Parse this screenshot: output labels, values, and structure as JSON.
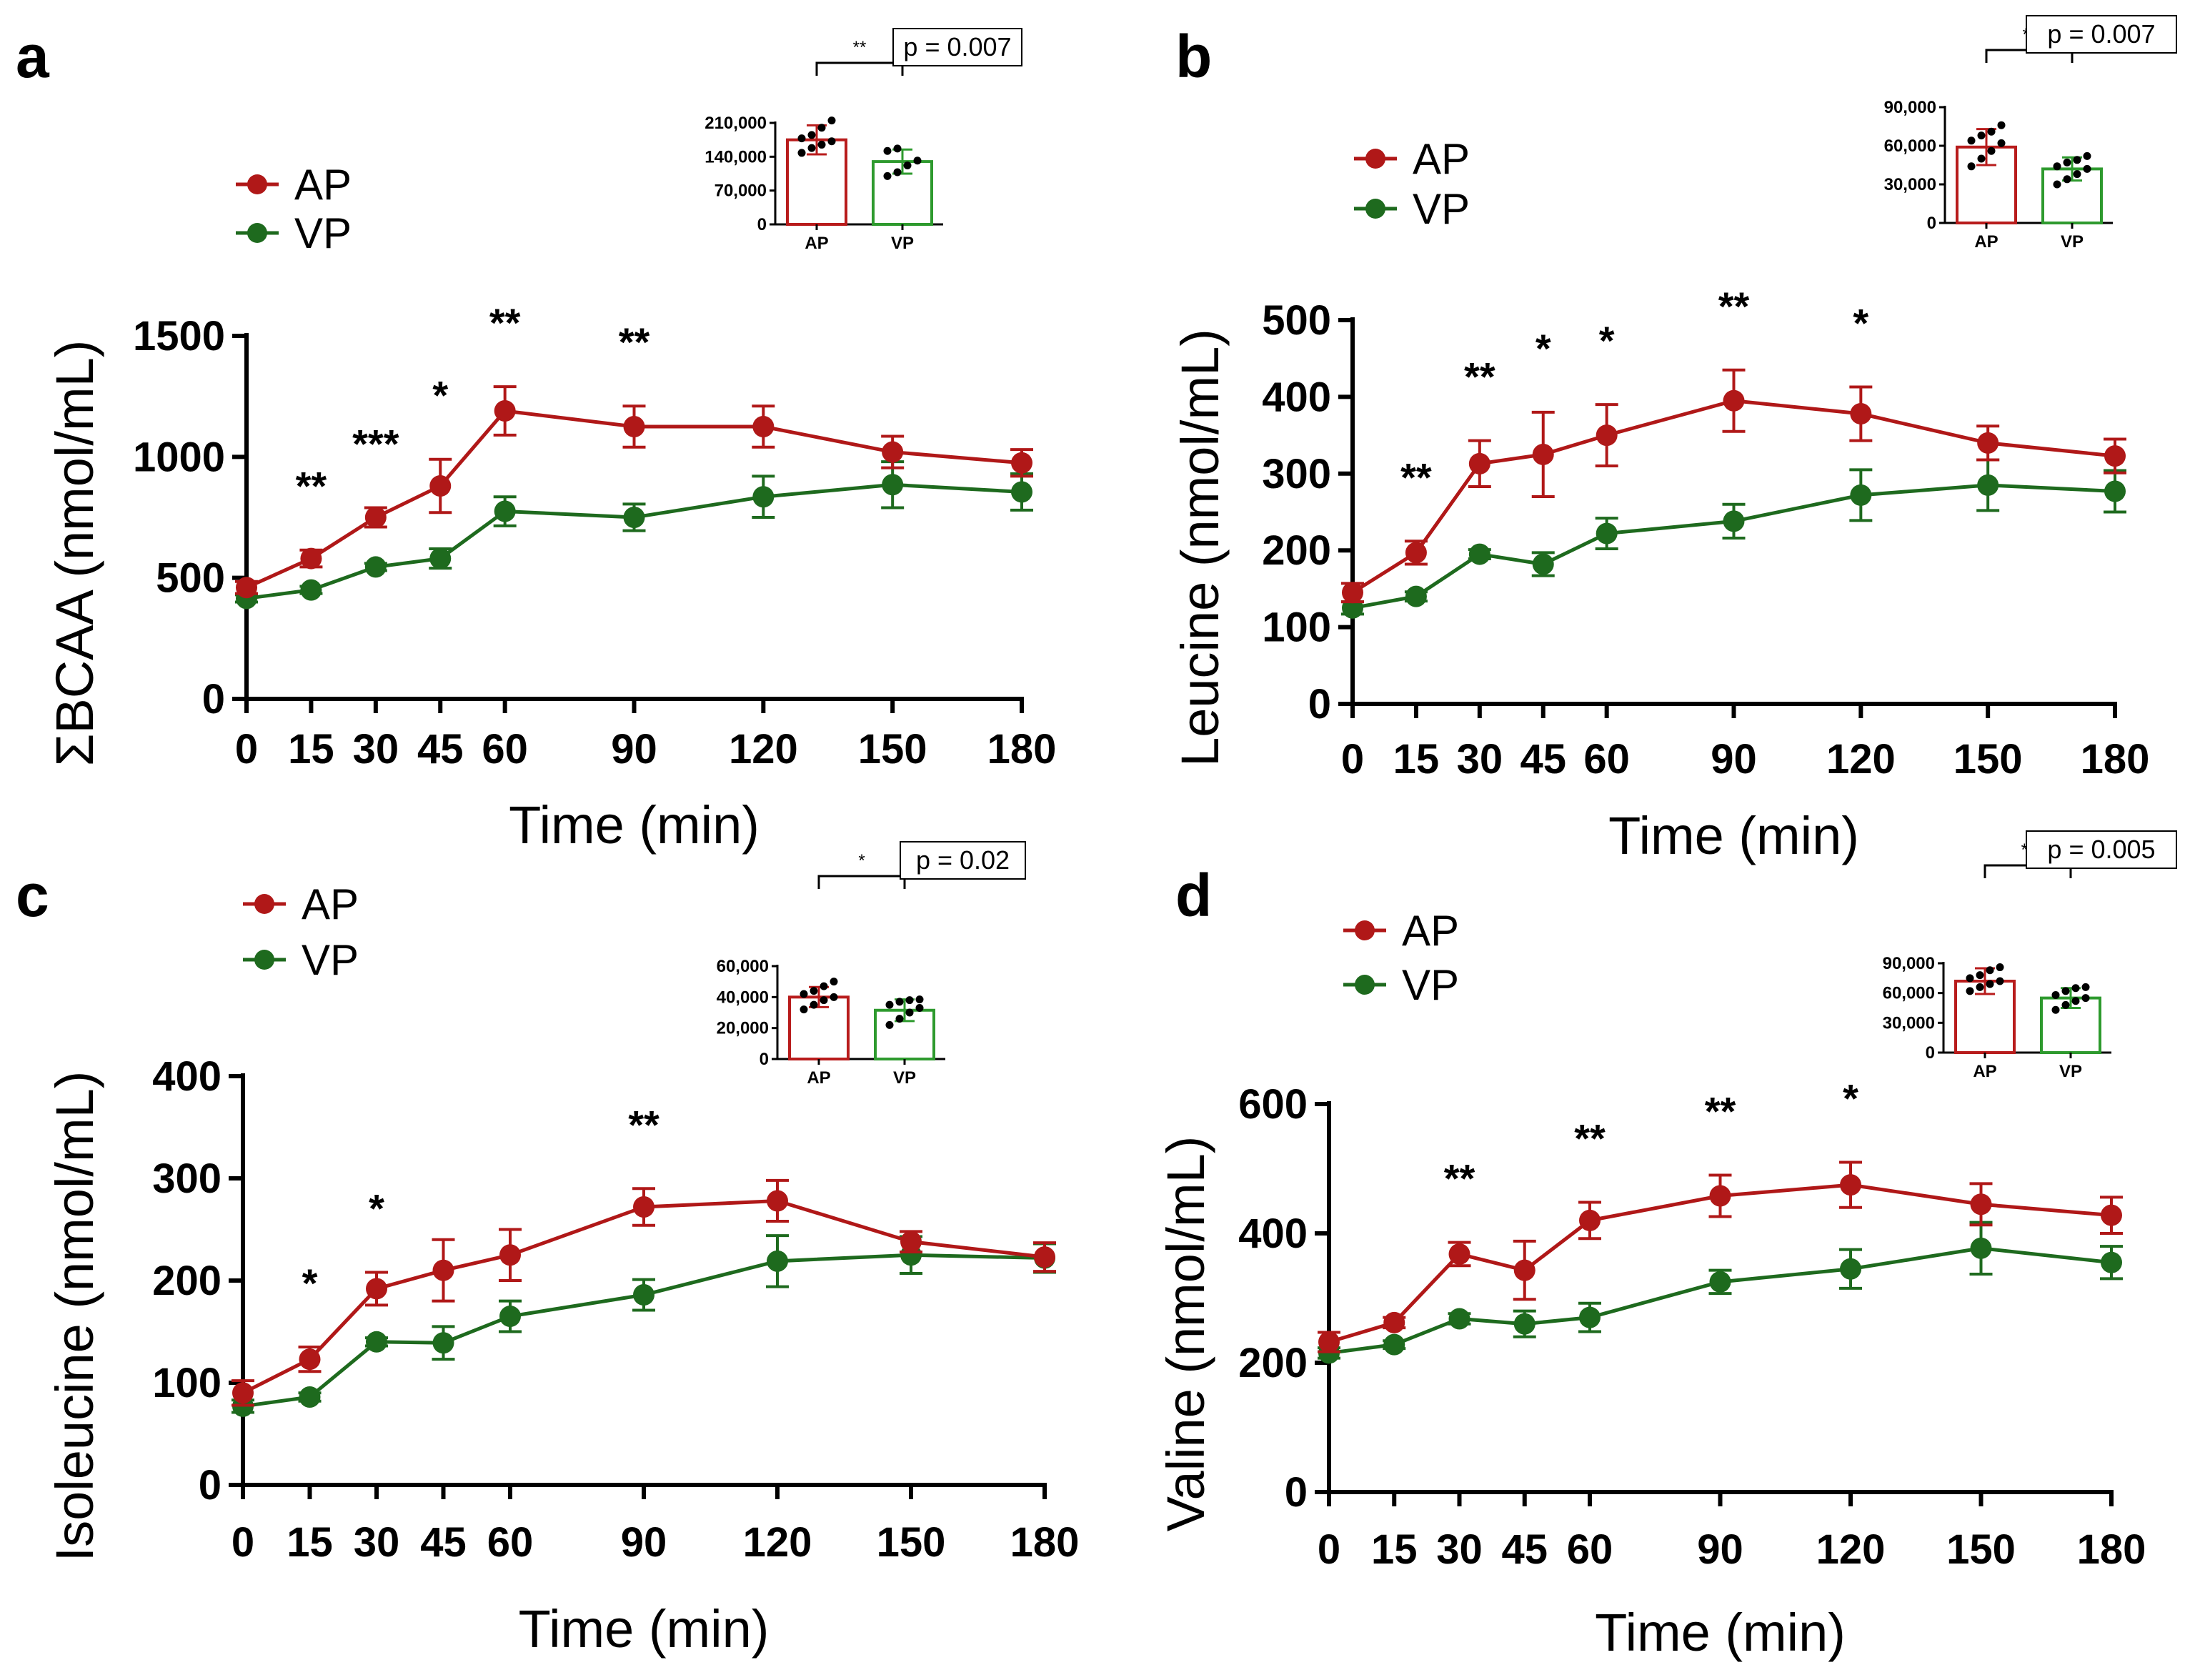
{
  "colors": {
    "AP": "#b01818",
    "VP": "#1e6a1e",
    "inset_AP": "#b81c1c",
    "inset_VP": "#2e9a2e",
    "axis": "#000000"
  },
  "chart_data": [
    {
      "panel": "a",
      "type": "line",
      "title": "",
      "xlabel": "Time (min)",
      "ylabel": "ΣBCAA (nmol/mL)",
      "x": [
        0,
        15,
        30,
        45,
        60,
        90,
        120,
        150,
        180
      ],
      "xtick_labels": [
        "0",
        "15",
        "30",
        "45",
        "60",
        "90",
        "120",
        "150",
        "180"
      ],
      "ylim": [
        0,
        1500
      ],
      "yticks": [
        0,
        500,
        1000,
        1500
      ],
      "ytick_labels": [
        "0",
        "500",
        "1000",
        "1500"
      ],
      "legend": "top-left",
      "series": [
        {
          "name": "AP",
          "values": [
            460,
            580,
            750,
            880,
            1190,
            1125,
            1125,
            1020,
            975
          ],
          "errors": [
            25,
            35,
            40,
            110,
            100,
            85,
            85,
            65,
            55
          ]
        },
        {
          "name": "VP",
          "values": [
            415,
            450,
            545,
            580,
            775,
            750,
            835,
            885,
            855
          ],
          "errors": [
            15,
            15,
            15,
            40,
            60,
            55,
            85,
            95,
            75
          ]
        }
      ],
      "annotations": [
        {
          "x": 15,
          "text": "**"
        },
        {
          "x": 30,
          "text": "***"
        },
        {
          "x": 45,
          "text": "*"
        },
        {
          "x": 60,
          "text": "**"
        },
        {
          "x": 90,
          "text": "**"
        }
      ],
      "inset": {
        "type": "bar",
        "categories": [
          "AP",
          "VP"
        ],
        "values": [
          175000,
          130000
        ],
        "errors": [
          30000,
          25000
        ],
        "ylim": [
          0,
          210000
        ],
        "yticks": [
          0,
          70000,
          140000,
          210000
        ],
        "ytick_labels": [
          "0",
          "70,000",
          "140,000",
          "210,000"
        ],
        "points": [
          [
            148000,
            158000,
            165000,
            172000,
            178000,
            185000,
            200000,
            215000
          ],
          [
            100000,
            108000,
            122000,
            132000,
            152000,
            157000
          ]
        ],
        "significance": "**",
        "p_label": "p = 0.007"
      }
    },
    {
      "panel": "b",
      "type": "line",
      "title": "",
      "xlabel": "Time (min)",
      "ylabel": "Leucine (nmol/mL)",
      "x": [
        0,
        15,
        30,
        45,
        60,
        90,
        120,
        150,
        180
      ],
      "xtick_labels": [
        "0",
        "15",
        "30",
        "45",
        "60",
        "90",
        "120",
        "150",
        "180"
      ],
      "ylim": [
        0,
        500
      ],
      "yticks": [
        0,
        100,
        200,
        300,
        400,
        500
      ],
      "ytick_labels": [
        "0",
        "100",
        "200",
        "300",
        "400",
        "500"
      ],
      "legend": "top-left",
      "series": [
        {
          "name": "AP",
          "values": [
            145,
            197,
            313,
            325,
            350,
            395,
            378,
            340,
            323
          ],
          "errors": [
            12,
            15,
            30,
            55,
            40,
            40,
            35,
            22,
            22
          ]
        },
        {
          "name": "VP",
          "values": [
            125,
            140,
            195,
            182,
            222,
            238,
            272,
            285,
            277
          ],
          "errors": [
            8,
            6,
            6,
            15,
            20,
            22,
            33,
            33,
            27
          ]
        }
      ],
      "annotations": [
        {
          "x": 15,
          "text": "**"
        },
        {
          "x": 30,
          "text": "**"
        },
        {
          "x": 45,
          "text": "*"
        },
        {
          "x": 60,
          "text": "*"
        },
        {
          "x": 90,
          "text": "**"
        },
        {
          "x": 120,
          "text": "*"
        }
      ],
      "inset": {
        "type": "bar",
        "categories": [
          "AP",
          "VP"
        ],
        "values": [
          59000,
          42000
        ],
        "errors": [
          14000,
          9000
        ],
        "ylim": [
          0,
          90000
        ],
        "yticks": [
          0,
          30000,
          60000,
          90000
        ],
        "ytick_labels": [
          "0",
          "30,000",
          "60,000",
          "90,000"
        ],
        "points": [
          [
            44000,
            50000,
            56000,
            62000,
            64000,
            68000,
            71000,
            76000
          ],
          [
            30000,
            34000,
            38000,
            42000,
            44000,
            47000,
            49000,
            52000
          ]
        ],
        "significance": "**",
        "p_label": "p = 0.007"
      }
    },
    {
      "panel": "c",
      "type": "line",
      "title": "",
      "xlabel": "Time (min)",
      "ylabel": "Isoleucine (nmol/mL)",
      "x": [
        0,
        15,
        30,
        45,
        60,
        90,
        120,
        150,
        180
      ],
      "xtick_labels": [
        "0",
        "15",
        "30",
        "45",
        "60",
        "90",
        "120",
        "150",
        "180"
      ],
      "ylim": [
        0,
        400
      ],
      "yticks": [
        0,
        100,
        200,
        300,
        400
      ],
      "ytick_labels": [
        "0",
        "100",
        "200",
        "300",
        "400"
      ],
      "legend": "top-left",
      "series": [
        {
          "name": "AP",
          "values": [
            90,
            123,
            192,
            210,
            225,
            272,
            278,
            238,
            223
          ],
          "errors": [
            12,
            12,
            16,
            30,
            25,
            18,
            20,
            10,
            14
          ]
        },
        {
          "name": "VP",
          "values": [
            77,
            86,
            140,
            139,
            165,
            186,
            219,
            225,
            222
          ],
          "errors": [
            6,
            4,
            4,
            16,
            15,
            15,
            25,
            18,
            14
          ]
        }
      ],
      "annotations": [
        {
          "x": 15,
          "text": "*"
        },
        {
          "x": 30,
          "text": "*"
        },
        {
          "x": 90,
          "text": "**"
        }
      ],
      "inset": {
        "type": "bar",
        "categories": [
          "AP",
          "VP"
        ],
        "values": [
          40000,
          31500
        ],
        "errors": [
          6500,
          7000
        ],
        "ylim": [
          0,
          60000
        ],
        "yticks": [
          0,
          20000,
          40000,
          60000
        ],
        "ytick_labels": [
          "0",
          "20,000",
          "40,000",
          "60,000"
        ],
        "points": [
          [
            32000,
            35000,
            38000,
            40000,
            42000,
            44000,
            47000,
            50000
          ],
          [
            22000,
            26000,
            30000,
            33000,
            35000,
            37000,
            38000,
            38500
          ]
        ],
        "significance": "*",
        "p_label": "p = 0.02"
      }
    },
    {
      "panel": "d",
      "type": "line",
      "title": "",
      "xlabel": "Time (min)",
      "ylabel": "Valine (nmol/mL)",
      "x": [
        0,
        15,
        30,
        45,
        60,
        90,
        120,
        150,
        180
      ],
      "xtick_labels": [
        "0",
        "15",
        "30",
        "45",
        "60",
        "90",
        "120",
        "150",
        "180"
      ],
      "ylim": [
        0,
        600
      ],
      "yticks": [
        0,
        200,
        400,
        600
      ],
      "ytick_labels": [
        "0",
        "200",
        "400",
        "600"
      ],
      "legend": "top-left",
      "series": [
        {
          "name": "AP",
          "values": [
            232,
            262,
            368,
            343,
            420,
            458,
            475,
            445,
            428
          ],
          "errors": [
            15,
            8,
            18,
            45,
            28,
            32,
            35,
            32,
            28
          ]
        },
        {
          "name": "VP",
          "values": [
            215,
            228,
            268,
            260,
            270,
            325,
            345,
            377,
            355
          ],
          "errors": [
            8,
            6,
            8,
            20,
            22,
            18,
            30,
            40,
            25
          ]
        }
      ],
      "annotations": [
        {
          "x": 30,
          "text": "**"
        },
        {
          "x": 60,
          "text": "**"
        },
        {
          "x": 90,
          "text": "**"
        },
        {
          "x": 120,
          "text": "*"
        }
      ],
      "inset": {
        "type": "bar",
        "categories": [
          "AP",
          "VP"
        ],
        "values": [
          72000,
          55000
        ],
        "errors": [
          13000,
          10000
        ],
        "ylim": [
          0,
          90000
        ],
        "yticks": [
          0,
          30000,
          60000,
          90000
        ],
        "ytick_labels": [
          "0",
          "30,000",
          "60,000",
          "90,000"
        ],
        "points": [
          [
            62000,
            66000,
            69000,
            72000,
            75000,
            78000,
            83000,
            86000
          ],
          [
            43000,
            48000,
            52000,
            55000,
            58000,
            62000,
            65000,
            66000
          ]
        ],
        "significance": "**",
        "p_label": "p = 0.005"
      }
    }
  ]
}
